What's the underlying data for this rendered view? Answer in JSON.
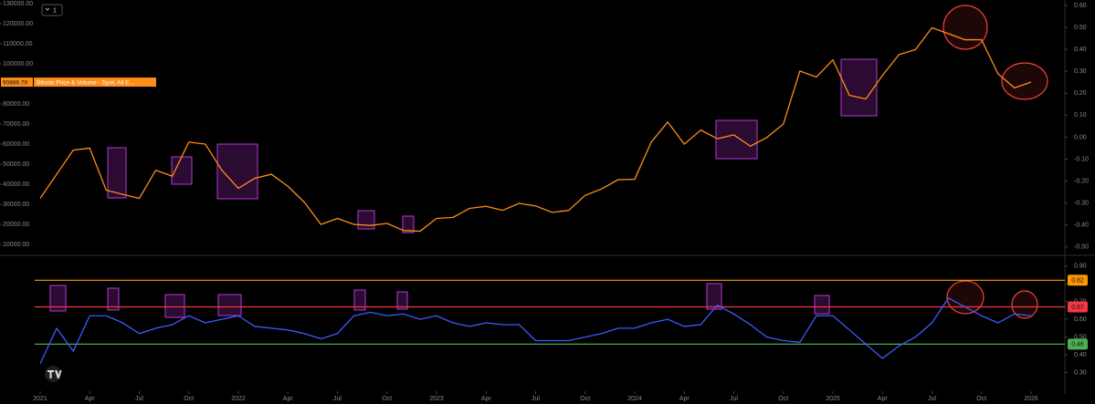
{
  "toolbar_label": "1",
  "chart_data": [
    {
      "type": "line",
      "x": [
        "2021-01",
        "2021-02",
        "2021-03",
        "2021-04",
        "2021-05",
        "2021-06",
        "2021-07",
        "2021-08",
        "2021-09",
        "2021-10",
        "2021-11",
        "2021-12",
        "2022-01",
        "2022-02",
        "2022-03",
        "2022-04",
        "2022-05",
        "2022-06",
        "2022-07",
        "2022-08",
        "2022-09",
        "2022-10",
        "2022-11",
        "2022-12",
        "2023-01",
        "2023-02",
        "2023-03",
        "2023-04",
        "2023-05",
        "2023-06",
        "2023-07",
        "2023-08",
        "2023-09",
        "2023-10",
        "2023-11",
        "2023-12",
        "2024-01",
        "2024-02",
        "2024-03",
        "2024-04",
        "2024-05",
        "2024-06",
        "2024-07",
        "2024-08",
        "2024-09",
        "2024-10",
        "2024-11",
        "2024-12",
        "2025-01",
        "2025-02",
        "2025-03",
        "2025-04",
        "2025-05",
        "2025-06",
        "2025-07",
        "2025-08",
        "2025-09",
        "2025-10",
        "2025-11",
        "2025-12",
        "2026-01"
      ],
      "series": [
        {
          "name": "Bitcoin Price & Volume - Spot, All E...",
          "color": "#ff8c1a",
          "values": [
            33000,
            45000,
            57000,
            58000,
            37000,
            35000,
            33000,
            47000,
            44000,
            61000,
            60000,
            47000,
            38000,
            43000,
            45000,
            39000,
            31000,
            20000,
            23000,
            20000,
            19500,
            20500,
            17000,
            16600,
            23000,
            23500,
            28000,
            29000,
            27000,
            30500,
            29200,
            26000,
            27000,
            34500,
            37700,
            42300,
            42500,
            61000,
            71000,
            60000,
            67000,
            62700,
            64600,
            59000,
            63300,
            70000,
            96400,
            93400,
            102000,
            84300,
            82500,
            94200,
            104600,
            107100,
            118000,
            115000,
            112000,
            112000,
            95000,
            88000,
            90886.79
          ]
        }
      ],
      "last_value": 90886.79,
      "ylim": [
        5500,
        131800
      ],
      "yticks": [
        {
          "value": 10000,
          "label": "10000.00"
        },
        {
          "value": 20000,
          "label": "20000.00"
        },
        {
          "value": 30000,
          "label": "30000.00"
        },
        {
          "value": 40000,
          "label": "40000.00"
        },
        {
          "value": 50000,
          "label": "50000.00"
        },
        {
          "value": 60000,
          "label": "60000.00"
        },
        {
          "value": 70000,
          "label": "70000.00"
        },
        {
          "value": 80000,
          "label": "80000.00"
        },
        {
          "value": 100000,
          "label": "100000.00"
        },
        {
          "value": 110000,
          "label": "110000.00"
        },
        {
          "value": 120000,
          "label": "120000.00"
        },
        {
          "value": 130000,
          "label": "130000.00"
        }
      ],
      "y2lim": [
        -0.53,
        0.625
      ],
      "y2ticks": [
        {
          "value": -0.5,
          "label": "-0.50"
        },
        {
          "value": -0.4,
          "label": "-0.40"
        },
        {
          "value": -0.3,
          "label": "-0.30"
        },
        {
          "value": -0.2,
          "label": "-0.20"
        },
        {
          "value": -0.1,
          "label": "-0.10"
        },
        {
          "value": 0,
          "label": "0.00"
        },
        {
          "value": 0.1,
          "label": "0.10"
        },
        {
          "value": 0.2,
          "label": "0.20"
        },
        {
          "value": 0.3,
          "label": "0.30"
        },
        {
          "value": 0.4,
          "label": "0.40"
        },
        {
          "value": 0.5,
          "label": "0.50"
        },
        {
          "value": 0.6,
          "label": "0.60"
        }
      ]
    },
    {
      "type": "line",
      "x": [
        "2021-01",
        "2021-02",
        "2021-03",
        "2021-04",
        "2021-05",
        "2021-06",
        "2021-07",
        "2021-08",
        "2021-09",
        "2021-10",
        "2021-11",
        "2021-12",
        "2022-01",
        "2022-02",
        "2022-03",
        "2022-04",
        "2022-05",
        "2022-06",
        "2022-07",
        "2022-08",
        "2022-09",
        "2022-10",
        "2022-11",
        "2022-12",
        "2023-01",
        "2023-02",
        "2023-03",
        "2023-04",
        "2023-05",
        "2023-06",
        "2023-07",
        "2023-08",
        "2023-09",
        "2023-10",
        "2023-11",
        "2023-12",
        "2024-01",
        "2024-02",
        "2024-03",
        "2024-04",
        "2024-05",
        "2024-06",
        "2024-07",
        "2024-08",
        "2024-09",
        "2024-10",
        "2024-11",
        "2024-12",
        "2025-01",
        "2025-02",
        "2025-03",
        "2025-04",
        "2025-05",
        "2025-06",
        "2025-07",
        "2025-08",
        "2025-09",
        "2025-10",
        "2025-11",
        "2025-12",
        "2026-01"
      ],
      "series": [
        {
          "color": "#3d5afe",
          "values": [
            0.35,
            0.55,
            0.42,
            0.62,
            0.62,
            0.58,
            0.52,
            0.55,
            0.57,
            0.62,
            0.58,
            0.6,
            0.62,
            0.56,
            0.55,
            0.54,
            0.52,
            0.49,
            0.52,
            0.62,
            0.64,
            0.62,
            0.63,
            0.6,
            0.62,
            0.58,
            0.56,
            0.58,
            0.57,
            0.57,
            0.48,
            0.48,
            0.48,
            0.5,
            0.52,
            0.55,
            0.55,
            0.58,
            0.6,
            0.56,
            0.57,
            0.68,
            0.63,
            0.57,
            0.5,
            0.48,
            0.47,
            0.62,
            0.62,
            0.54,
            0.46,
            0.38,
            0.45,
            0.5,
            0.58,
            0.72,
            0.67,
            0.62,
            0.58,
            0.63,
            0.62
          ]
        }
      ],
      "levels": [
        {
          "value": 0.82,
          "color": "#ff9800"
        },
        {
          "value": 0.67,
          "color": "#f23645"
        },
        {
          "value": 0.46,
          "color": "#4caf50"
        }
      ],
      "ylim": [
        0.2,
        0.95
      ],
      "yticks": [
        {
          "value": 0.3,
          "label": "0.30"
        },
        {
          "value": 0.4,
          "label": "0.40"
        },
        {
          "value": 0.5,
          "label": "0.50"
        },
        {
          "value": 0.6,
          "label": "0.60"
        },
        {
          "value": 0.7,
          "label": "0.70"
        },
        {
          "value": 0.8,
          "label": "0.80"
        },
        {
          "value": 0.9,
          "label": "0.90"
        }
      ],
      "xticks": [
        {
          "value": "2021-01",
          "label": "2021"
        },
        {
          "value": "2021-04",
          "label": "Apr"
        },
        {
          "value": "2021-07",
          "label": "Jul"
        },
        {
          "value": "2021-10",
          "label": "Oct"
        },
        {
          "value": "2022-01",
          "label": "2022"
        },
        {
          "value": "2022-04",
          "label": "Apr"
        },
        {
          "value": "2022-07",
          "label": "Jul"
        },
        {
          "value": "2022-10",
          "label": "Oct"
        },
        {
          "value": "2023-01",
          "label": "2023"
        },
        {
          "value": "2023-04",
          "label": "Apr"
        },
        {
          "value": "2023-07",
          "label": "Jul"
        },
        {
          "value": "2023-10",
          "label": "Oct"
        },
        {
          "value": "2024-01",
          "label": "2024"
        },
        {
          "value": "2024-04",
          "label": "Apr"
        },
        {
          "value": "2024-07",
          "label": "Jul"
        },
        {
          "value": "2024-10",
          "label": "Oct"
        },
        {
          "value": "2025-01",
          "label": "2025"
        },
        {
          "value": "2025-04",
          "label": "Apr"
        },
        {
          "value": "2025-07",
          "label": "Jul"
        },
        {
          "value": "2025-10",
          "label": "Oct"
        },
        {
          "value": "2026-01",
          "label": "2026"
        }
      ]
    }
  ]
}
